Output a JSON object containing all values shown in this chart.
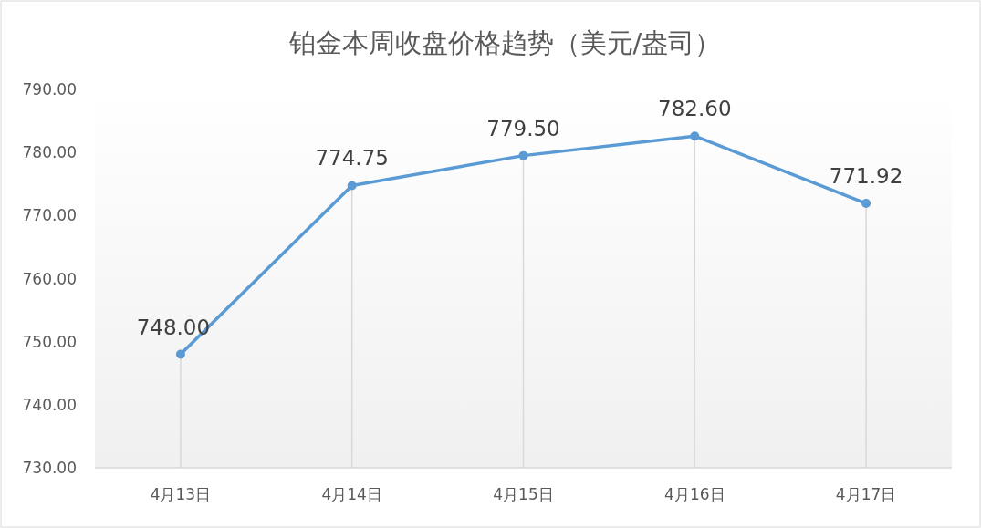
{
  "chart_data": {
    "type": "line",
    "title": "铂金本周收盘价格趋势（美元/盎司）",
    "categories": [
      "4月13日",
      "4月14日",
      "4月15日",
      "4月16日",
      "4月17日"
    ],
    "series": [
      {
        "color": "#5b9bd5",
        "values": [
          748.0,
          774.75,
          779.5,
          782.6,
          771.92
        ],
        "value_labels": [
          "748.00",
          "774.75",
          "779.50",
          "782.60",
          "771.92"
        ]
      }
    ],
    "ylim": [
      730,
      790
    ],
    "yticks": [
      {
        "value": 730,
        "label": "730.00"
      },
      {
        "value": 740,
        "label": "740.00"
      },
      {
        "value": 750,
        "label": "750.00"
      },
      {
        "value": 760,
        "label": "760.00"
      },
      {
        "value": 770,
        "label": "770.00"
      },
      {
        "value": 780,
        "label": "780.00"
      },
      {
        "value": 790,
        "label": "790.00"
      }
    ],
    "grid": "x",
    "marker": "circle",
    "line_style": "solid"
  }
}
